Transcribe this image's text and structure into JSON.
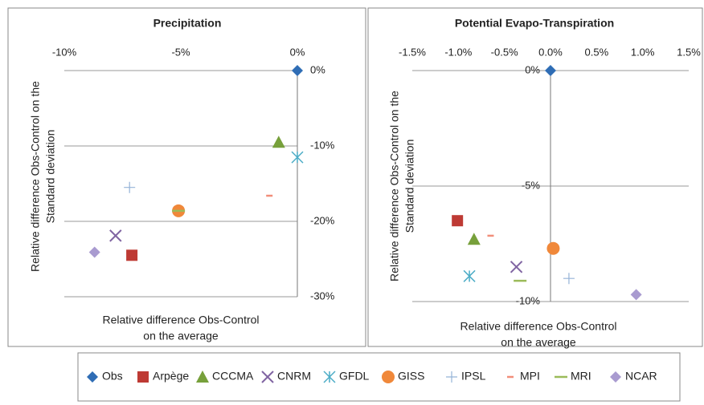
{
  "chart_data": [
    {
      "type": "scatter",
      "title": "Precipitation",
      "xlabel": [
        "Relative difference Obs-Control",
        "on the average"
      ],
      "ylabel": [
        "Relative difference  Obs-Control on the",
        "Standard deviation"
      ],
      "xlim": [
        -10,
        0
      ],
      "ylim": [
        -30,
        0
      ],
      "xticks": [
        {
          "value": -10,
          "label": "-10%"
        },
        {
          "value": -5,
          "label": "-5%"
        },
        {
          "value": 0,
          "label": "0%"
        }
      ],
      "yticks": [
        {
          "value": 0,
          "label": "0%"
        },
        {
          "value": -10,
          "label": "-10%"
        },
        {
          "value": -20,
          "label": "-20%"
        },
        {
          "value": -30,
          "label": "-30%"
        }
      ],
      "grid": true,
      "series": [
        {
          "name": "Obs",
          "color": "#2f6db5",
          "marker": "diamond",
          "x": [
            0
          ],
          "values": [
            0
          ]
        },
        {
          "name": "Arpège",
          "color": "#be3a34",
          "marker": "square",
          "x": [
            -7.1
          ],
          "values": [
            -24.5
          ]
        },
        {
          "name": "CCCMA",
          "color": "#77a03b",
          "marker": "triangle",
          "x": [
            -0.8
          ],
          "values": [
            -9.5
          ]
        },
        {
          "name": "CNRM",
          "color": "#8064a2",
          "marker": "x",
          "x": [
            -7.8
          ],
          "values": [
            -21.9
          ]
        },
        {
          "name": "GFDL",
          "color": "#4bacc6",
          "marker": "star",
          "x": [
            0
          ],
          "values": [
            -11.5
          ]
        },
        {
          "name": "GISS",
          "color": "#f0883a",
          "marker": "circle",
          "x": [
            -5.1
          ],
          "values": [
            -18.6
          ]
        },
        {
          "name": "IPSL",
          "color": "#95b3d7",
          "marker": "plus",
          "x": [
            -7.2
          ],
          "values": [
            -15.5
          ]
        },
        {
          "name": "MPI",
          "color": "#f28e7a",
          "marker": "dash",
          "x": [
            -1.2
          ],
          "values": [
            -16.6
          ]
        },
        {
          "name": "MRI",
          "color": "#9bbb59",
          "marker": "longdash",
          "x": [
            -5.1
          ],
          "values": [
            -18.6
          ]
        },
        {
          "name": "NCAR",
          "color": "#a99bd0",
          "marker": "diamond",
          "x": [
            -8.7
          ],
          "values": [
            -24.1
          ]
        }
      ]
    },
    {
      "type": "scatter",
      "title": "Potential Evapo-Transpiration",
      "xlabel": [
        "Relative difference Obs-Control",
        "on the average"
      ],
      "ylabel": [
        "Relative difference  Obs-Control on the",
        "Standard deviation"
      ],
      "xlim": [
        -1.5,
        1.5
      ],
      "ylim": [
        -10,
        0
      ],
      "xticks": [
        {
          "value": -1.5,
          "label": "-1.5%"
        },
        {
          "value": -1,
          "label": "-1.0%"
        },
        {
          "value": -0.5,
          "label": "-0.5%"
        },
        {
          "value": 0,
          "label": "0.0%"
        },
        {
          "value": 0.5,
          "label": "0.5%"
        },
        {
          "value": 1,
          "label": "1.0%"
        },
        {
          "value": 1.5,
          "label": "1.5%"
        }
      ],
      "yticks": [
        {
          "value": 0,
          "label": "0%"
        },
        {
          "value": -5,
          "label": "-5%"
        },
        {
          "value": -10,
          "label": "-10%"
        }
      ],
      "grid": true,
      "series": [
        {
          "name": "Obs",
          "color": "#2f6db5",
          "marker": "diamond",
          "x": [
            0
          ],
          "values": [
            0
          ]
        },
        {
          "name": "Arpège",
          "color": "#be3a34",
          "marker": "square",
          "x": [
            -1.01
          ],
          "values": [
            -6.5
          ]
        },
        {
          "name": "CCCMA",
          "color": "#77a03b",
          "marker": "triangle",
          "x": [
            -0.83
          ],
          "values": [
            -7.3
          ]
        },
        {
          "name": "CNRM",
          "color": "#8064a2",
          "marker": "x",
          "x": [
            -0.37
          ],
          "values": [
            -8.5
          ]
        },
        {
          "name": "GFDL",
          "color": "#4bacc6",
          "marker": "star",
          "x": [
            -0.88
          ],
          "values": [
            -8.9
          ]
        },
        {
          "name": "GISS",
          "color": "#f0883a",
          "marker": "circle",
          "x": [
            0.03
          ],
          "values": [
            -7.7
          ]
        },
        {
          "name": "IPSL",
          "color": "#95b3d7",
          "marker": "plus",
          "x": [
            0.2
          ],
          "values": [
            -9
          ]
        },
        {
          "name": "MPI",
          "color": "#f28e7a",
          "marker": "dash",
          "x": [
            -0.65
          ],
          "values": [
            -7.15
          ]
        },
        {
          "name": "MRI",
          "color": "#9bbb59",
          "marker": "longdash",
          "x": [
            -0.33
          ],
          "values": [
            -9.1
          ]
        },
        {
          "name": "NCAR",
          "color": "#a99bd0",
          "marker": "diamond",
          "x": [
            0.93
          ],
          "values": [
            -9.7
          ]
        }
      ]
    }
  ]
}
